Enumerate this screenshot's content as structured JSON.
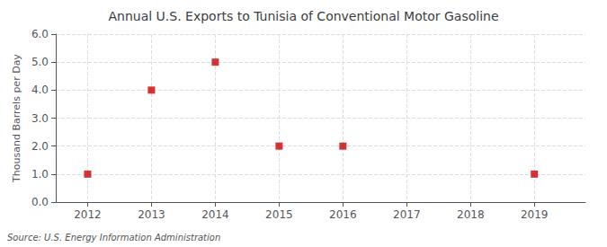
{
  "chart_data": {
    "type": "scatter",
    "title": "Annual U.S. Exports to Tunisia of Conventional Motor Gasoline",
    "ylabel": "Thousand Barrels per Day",
    "annotation": "Source: U.S. Energy Information Administration",
    "x": [
      2012,
      2013,
      2014,
      2015,
      2016,
      2019
    ],
    "values": [
      1.0,
      4.0,
      5.0,
      2.0,
      2.0,
      1.0
    ],
    "color": "#cc0000",
    "marker": "square",
    "xlim": [
      2011.5,
      2019.8
    ],
    "xticks": [
      2012,
      2013,
      2014,
      2015,
      2016,
      2017,
      2018,
      2019
    ],
    "ylim": [
      0.0,
      6.0
    ],
    "yticks": [
      {
        "value": 0,
        "label": "0.0"
      },
      {
        "value": 1,
        "label": "1.0"
      },
      {
        "value": 2,
        "label": "2.0"
      },
      {
        "value": 3,
        "label": "3.0"
      },
      {
        "value": 4,
        "label": "4.0"
      },
      {
        "value": 5,
        "label": "5.0"
      },
      {
        "value": 6,
        "label": "6.0"
      }
    ],
    "grid": true
  }
}
